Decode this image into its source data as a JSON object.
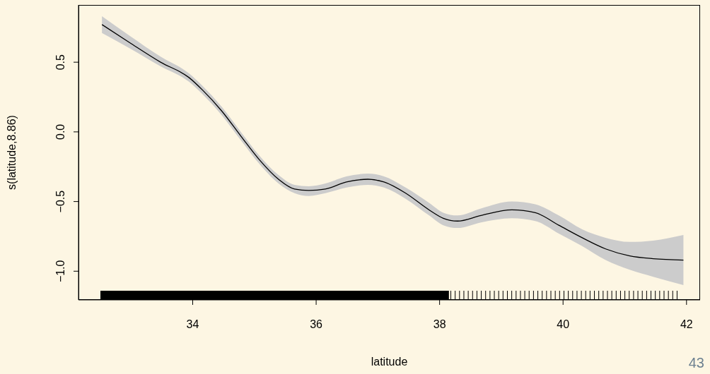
{
  "chart_data": {
    "type": "line",
    "xlabel": "latitude",
    "ylabel": "s(latitude,8.86)",
    "annotations": [
      "43"
    ],
    "xlim": [
      32.15,
      42.22
    ],
    "xticks": [
      34,
      36,
      38,
      40,
      42
    ],
    "ylim": [
      -1.206,
      0.911
    ],
    "yticks": [
      {
        "value": -1,
        "label": "−1.0"
      },
      {
        "value": -0.5,
        "label": "−0.5"
      },
      {
        "value": 0,
        "label": "0.0"
      },
      {
        "value": 0.5,
        "label": "0.5"
      }
    ],
    "grid": false,
    "legend": false,
    "marker": "none",
    "line_style": "solid",
    "series": [
      {
        "color": "#000000",
        "x": [
          32.53,
          32.98,
          33.48,
          33.94,
          34.16,
          34.47,
          34.78,
          35.08,
          35.39,
          35.65,
          35.88,
          36.15,
          36.49,
          36.84,
          37.1,
          37.45,
          37.83,
          38.06,
          38.29,
          38.67,
          39.17,
          39.55,
          39.93,
          40.31,
          40.69,
          41.08,
          41.46,
          41.95
        ],
        "values": [
          0.77,
          0.64,
          0.5,
          0.39,
          0.3,
          0.15,
          -0.03,
          -0.2,
          -0.34,
          -0.41,
          -0.42,
          -0.41,
          -0.36,
          -0.34,
          -0.36,
          -0.44,
          -0.56,
          -0.62,
          -0.64,
          -0.6,
          -0.56,
          -0.58,
          -0.67,
          -0.76,
          -0.84,
          -0.89,
          -0.91,
          -0.92
        ],
        "upper": [
          0.83,
          0.69,
          0.54,
          0.42,
          0.33,
          0.18,
          0,
          -0.17,
          -0.31,
          -0.38,
          -0.39,
          -0.37,
          -0.32,
          -0.3,
          -0.32,
          -0.4,
          -0.51,
          -0.58,
          -0.6,
          -0.55,
          -0.5,
          -0.52,
          -0.6,
          -0.7,
          -0.76,
          -0.79,
          -0.78,
          -0.74
        ],
        "lower": [
          0.71,
          0.6,
          0.47,
          0.36,
          0.27,
          0.12,
          -0.06,
          -0.23,
          -0.37,
          -0.44,
          -0.46,
          -0.44,
          -0.4,
          -0.38,
          -0.4,
          -0.48,
          -0.6,
          -0.67,
          -0.69,
          -0.65,
          -0.62,
          -0.64,
          -0.73,
          -0.82,
          -0.92,
          -0.99,
          -1.04,
          -1.1
        ]
      }
    ]
  }
}
